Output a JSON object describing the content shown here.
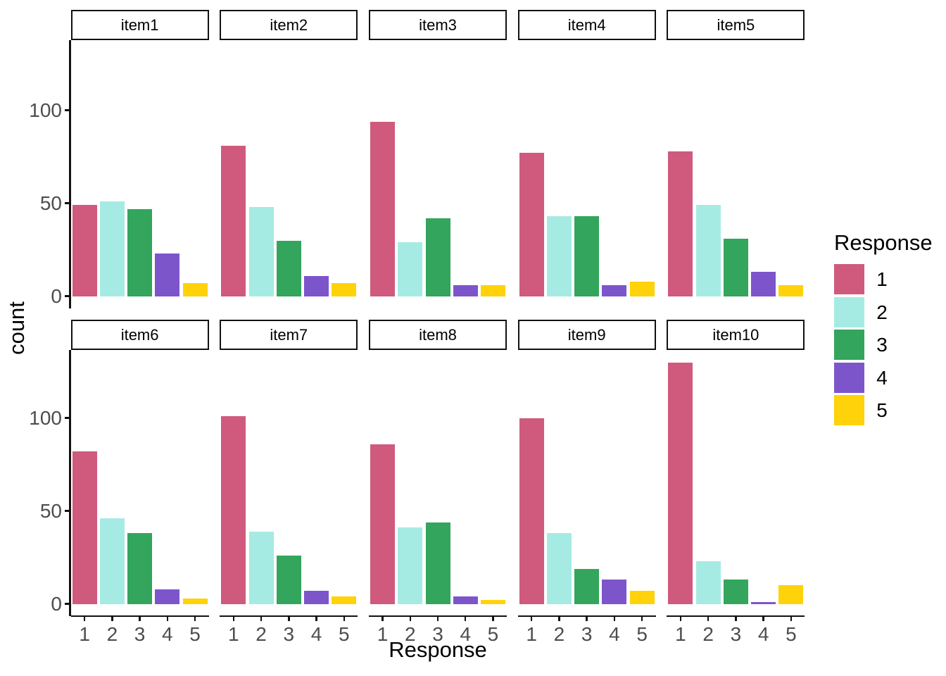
{
  "chart_data": {
    "type": "bar",
    "title": "",
    "xlabel": "Response",
    "ylabel": "count",
    "x_tick_labels": [
      "1",
      "2",
      "3",
      "4",
      "5"
    ],
    "y_tick_labels": [
      "0",
      "50",
      "100"
    ],
    "y_tick_values": [
      0,
      50,
      100
    ],
    "ylim": [
      0,
      137
    ],
    "grid": false,
    "facet_layout": {
      "rows": 2,
      "cols": 5
    },
    "legend": {
      "title": "Response",
      "position": "right",
      "entries": [
        {
          "label": "1",
          "color": "#CF5A7D"
        },
        {
          "label": "2",
          "color": "#A6EBE3"
        },
        {
          "label": "3",
          "color": "#33A55C"
        },
        {
          "label": "4",
          "color": "#7D55CB"
        },
        {
          "label": "5",
          "color": "#FFD20A"
        }
      ]
    },
    "facets": [
      {
        "label": "item1",
        "values": [
          49,
          51,
          47,
          23,
          7
        ]
      },
      {
        "label": "item2",
        "values": [
          81,
          48,
          30,
          11,
          7
        ]
      },
      {
        "label": "item3",
        "values": [
          94,
          29,
          42,
          6,
          6
        ]
      },
      {
        "label": "item4",
        "values": [
          77,
          43,
          43,
          6,
          8
        ]
      },
      {
        "label": "item5",
        "values": [
          78,
          49,
          31,
          13,
          6
        ]
      },
      {
        "label": "item6",
        "values": [
          82,
          46,
          38,
          8,
          3
        ]
      },
      {
        "label": "item7",
        "values": [
          101,
          39,
          26,
          7,
          4
        ]
      },
      {
        "label": "item8",
        "values": [
          86,
          41,
          44,
          4,
          2
        ]
      },
      {
        "label": "item9",
        "values": [
          100,
          38,
          19,
          13,
          7
        ]
      },
      {
        "label": "item10",
        "values": [
          130,
          23,
          13,
          1,
          10
        ]
      }
    ]
  }
}
